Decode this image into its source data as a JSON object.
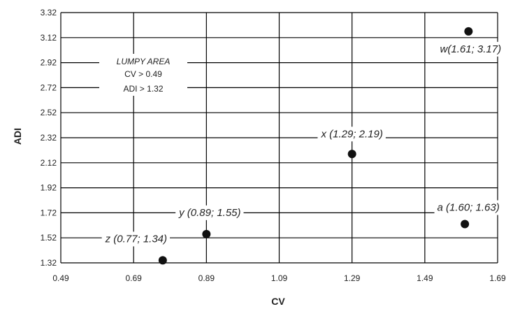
{
  "chart_data": {
    "type": "scatter",
    "xlabel": "CV",
    "ylabel": "ADI",
    "xlim": [
      0.49,
      1.69
    ],
    "ylim": [
      1.32,
      3.32
    ],
    "x_ticks": [
      "0.49",
      "0.69",
      "0.89",
      "1.09",
      "1.29",
      "1.49",
      "1.69"
    ],
    "y_ticks": [
      "1.32",
      "1.52",
      "1.72",
      "1.92",
      "2.12",
      "2.32",
      "2.52",
      "2.72",
      "2.92",
      "3.12",
      "3.32"
    ],
    "grid": true,
    "points": [
      {
        "label": "w(1.61; 3.17)",
        "x": 1.61,
        "y": 3.17
      },
      {
        "label": "x (1.29; 2.19)",
        "x": 1.29,
        "y": 2.19
      },
      {
        "label": "y (0.89; 1.55)",
        "x": 0.89,
        "y": 1.55
      },
      {
        "label": "a (1.60; 1.63)",
        "x": 1.6,
        "y": 1.63
      },
      {
        "label": "z (0.77; 1.34)",
        "x": 0.77,
        "y": 1.34
      }
    ],
    "annotation": {
      "title": "LUMPY AREA",
      "line1": "CV > 0.49",
      "line2": "ADI > 1.32"
    },
    "colors": {
      "point": "#111111",
      "grid": "#000000",
      "text": "#222222"
    }
  }
}
